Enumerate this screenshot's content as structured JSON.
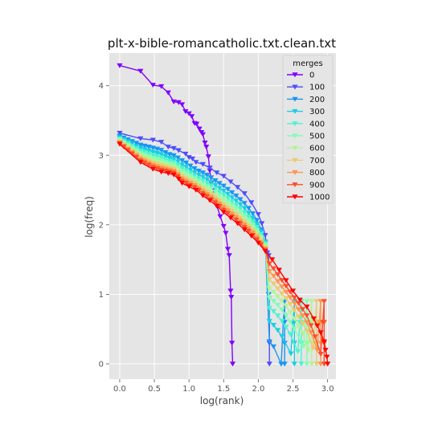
{
  "chart_data": {
    "type": "line",
    "title": "plt-x-bible-romancatholic.txt.clean.txt",
    "xlabel": "log(rank)",
    "ylabel": "log(freq)",
    "xlim": [
      -0.15,
      3.12
    ],
    "ylim": [
      -0.22,
      4.47
    ],
    "xticks": [
      "0.0",
      "0.5",
      "1.0",
      "1.5",
      "2.0",
      "2.5",
      "3.0"
    ],
    "yticks": [
      "0",
      "1",
      "2",
      "3",
      "4"
    ],
    "grid": true,
    "marker": "triangle-down",
    "legend": {
      "title": "merges",
      "placement": "top-right"
    },
    "series": [
      {
        "name": "0",
        "color": "#8000ff",
        "max_log_rank": 1.62,
        "points": [
          [
            0,
            4.29
          ],
          [
            0.3,
            4.21
          ],
          [
            0.48,
            4.01
          ],
          [
            0.6,
            3.99
          ],
          [
            0.7,
            3.9
          ],
          [
            0.78,
            3.77
          ],
          [
            0.85,
            3.76
          ],
          [
            0.9,
            3.73
          ],
          [
            0.95,
            3.63
          ],
          [
            1.0,
            3.6
          ],
          [
            1.04,
            3.56
          ],
          [
            1.08,
            3.46
          ],
          [
            1.11,
            3.45
          ],
          [
            1.15,
            3.38
          ],
          [
            1.18,
            3.33
          ],
          [
            1.2,
            3.3
          ],
          [
            1.23,
            3.18
          ],
          [
            1.25,
            3.12
          ],
          [
            1.28,
            2.98
          ],
          [
            1.3,
            2.78
          ],
          [
            1.32,
            2.6
          ],
          [
            1.35,
            2.5
          ],
          [
            1.38,
            2.35
          ],
          [
            1.4,
            2.28
          ],
          [
            1.45,
            2.12
          ],
          [
            1.5,
            1.98
          ],
          [
            1.53,
            1.88
          ],
          [
            1.56,
            1.65
          ],
          [
            1.58,
            1.56
          ],
          [
            1.6,
            1.05
          ],
          [
            1.61,
            0.96
          ],
          [
            1.62,
            0.3
          ],
          [
            1.63,
            0.0
          ]
        ]
      },
      {
        "name": "100",
        "color": "#4e4dfc",
        "max_log_rank": 2.15,
        "points": [
          [
            0,
            3.32
          ],
          [
            0.3,
            3.24
          ],
          [
            0.48,
            3.22
          ],
          [
            0.6,
            3.19
          ],
          [
            0.7,
            3.12
          ],
          [
            0.78,
            3.1
          ],
          [
            0.85,
            3.07
          ],
          [
            0.95,
            3.02
          ],
          [
            1.0,
            2.97
          ],
          [
            1.05,
            2.95
          ],
          [
            1.1,
            2.9
          ],
          [
            1.2,
            2.87
          ],
          [
            1.3,
            2.82
          ],
          [
            1.4,
            2.75
          ],
          [
            1.5,
            2.7
          ],
          [
            1.6,
            2.62
          ],
          [
            1.7,
            2.54
          ],
          [
            1.8,
            2.45
          ],
          [
            1.9,
            2.32
          ],
          [
            2.0,
            2.15
          ],
          [
            2.05,
            2.02
          ],
          [
            2.1,
            1.85
          ],
          [
            2.13,
            1.6
          ],
          [
            2.15,
            1.56
          ],
          [
            2.15,
            1.0
          ],
          [
            2.16,
            0.95
          ],
          [
            2.16,
            0.3
          ],
          [
            2.16,
            0.0
          ]
        ]
      },
      {
        "name": "200",
        "color": "#1996f3",
        "max_log_rank": 2.38
      },
      {
        "name": "300",
        "color": "#1ccee3",
        "max_log_rank": 2.52
      },
      {
        "name": "400",
        "color": "#4df3ce",
        "max_log_rank": 2.62
      },
      {
        "name": "500",
        "color": "#80ffb4",
        "max_log_rank": 2.7
      },
      {
        "name": "600",
        "color": "#b4f396",
        "max_log_rank": 2.77
      },
      {
        "name": "700",
        "color": "#e6cd73",
        "max_log_rank": 2.84
      },
      {
        "name": "800",
        "color": "#ff964f",
        "max_log_rank": 2.9
      },
      {
        "name": "900",
        "color": "#ff4d27",
        "max_log_rank": 2.95
      },
      {
        "name": "1000",
        "color": "#ff0000",
        "max_log_rank": 3.0,
        "points": [
          [
            0,
            3.16
          ],
          [
            0.3,
            2.9
          ],
          [
            0.48,
            2.8
          ],
          [
            0.6,
            2.76
          ],
          [
            0.7,
            2.74
          ],
          [
            0.78,
            2.72
          ],
          [
            0.85,
            2.66
          ],
          [
            0.9,
            2.6
          ],
          [
            1.0,
            2.55
          ],
          [
            1.1,
            2.5
          ],
          [
            1.2,
            2.42
          ],
          [
            1.3,
            2.35
          ],
          [
            1.4,
            2.27
          ],
          [
            1.5,
            2.18
          ],
          [
            1.6,
            2.1
          ],
          [
            1.7,
            2.02
          ],
          [
            1.8,
            1.93
          ],
          [
            1.9,
            1.84
          ],
          [
            2.0,
            1.74
          ],
          [
            2.1,
            1.62
          ],
          [
            2.2,
            1.5
          ],
          [
            2.3,
            1.35
          ],
          [
            2.4,
            1.2
          ],
          [
            2.5,
            1.05
          ],
          [
            2.6,
            0.92
          ],
          [
            2.7,
            0.82
          ],
          [
            2.8,
            0.65
          ],
          [
            2.85,
            0.55
          ],
          [
            2.9,
            0.45
          ],
          [
            2.95,
            0.32
          ],
          [
            2.97,
            0.2
          ],
          [
            2.99,
            0.1
          ],
          [
            3.0,
            0.0
          ]
        ]
      }
    ]
  }
}
